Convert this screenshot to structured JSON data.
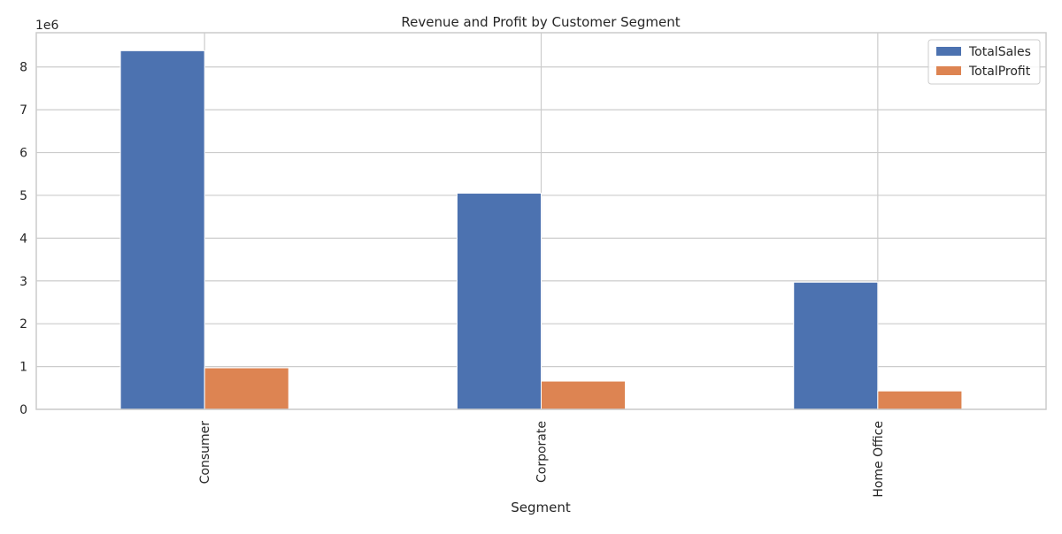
{
  "chart_data": {
    "type": "bar",
    "title": "Revenue and Profit by Customer Segment",
    "xlabel": "Segment",
    "ylabel": "",
    "categories": [
      "Consumer",
      "Corporate",
      "Home Office"
    ],
    "series": [
      {
        "name": "TotalSales",
        "values": [
          8380000,
          5050000,
          2970000
        ],
        "color": "#4c72b0"
      },
      {
        "name": "TotalProfit",
        "values": [
          970000,
          660000,
          430000
        ],
        "color": "#dd8452"
      }
    ],
    "ylim": [
      0,
      8800000
    ],
    "y_ticks": [
      0,
      1,
      2,
      3,
      4,
      5,
      6,
      7,
      8
    ],
    "y_offset_label": "1e6",
    "grid": true,
    "legend_position": "top-right",
    "x_tick_rotation": "vertical"
  }
}
